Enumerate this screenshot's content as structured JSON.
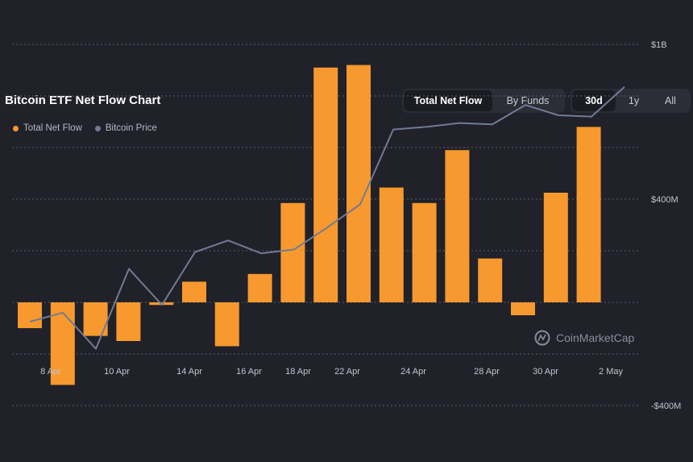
{
  "header": {
    "title": "Bitcoin ETF Net Flow Chart",
    "view_toggle": [
      "Total Net Flow",
      "By Funds"
    ],
    "view_active": 0,
    "range_toggle": [
      "30d",
      "1y",
      "All"
    ],
    "range_active": 0
  },
  "watermark": "CoinMarketCap",
  "colors": {
    "flow": "#f7992e",
    "price": "#737a93",
    "grid": "#5b5d67"
  },
  "chart_data": {
    "type": "bar",
    "series": [
      {
        "name": "Total Net Flow",
        "values": [
          -100,
          -320,
          -130,
          -150,
          -10,
          80,
          -170,
          110,
          385,
          910,
          920,
          445,
          385,
          590,
          170,
          -50,
          425,
          680
        ]
      },
      {
        "name": "Bitcoin Price",
        "values": [
          -75,
          -40,
          -180,
          130,
          -10,
          195,
          240,
          190,
          205,
          290,
          380,
          670,
          680,
          695,
          690,
          765,
          725,
          720,
          835
        ]
      }
    ],
    "x_ticks": [
      "8 Apr",
      "10 Apr",
      "14 Apr",
      "16 Apr",
      "18 Apr",
      "22 Apr",
      "24 Apr",
      "28 Apr",
      "30 Apr",
      "2 May"
    ],
    "y_ticks": [
      "$1B",
      "$400M",
      "-$400M"
    ],
    "ylim": [
      -400,
      1200
    ],
    "grid": true,
    "legend": "top-left"
  }
}
